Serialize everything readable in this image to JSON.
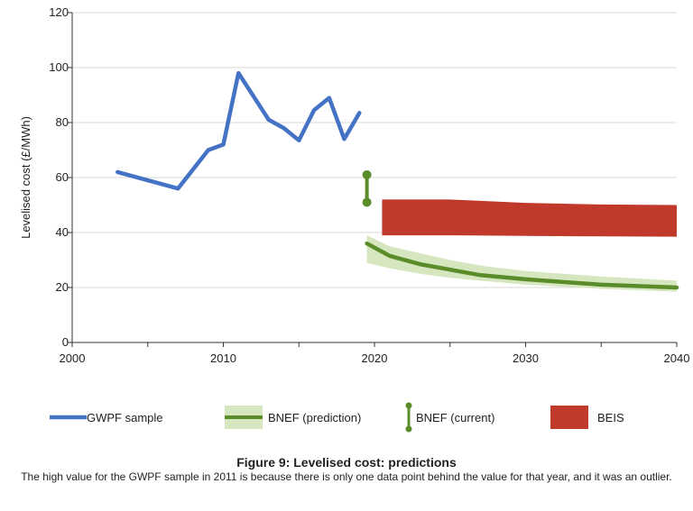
{
  "chart_data": {
    "type": "line",
    "xlim": [
      2000,
      2040
    ],
    "ylim": [
      0,
      120
    ],
    "ylabel": "Levelised cost (£/MWh)",
    "xlabel": "",
    "x_ticks": [
      2000,
      2010,
      2020,
      2030,
      2040
    ],
    "y_ticks": [
      0,
      20,
      40,
      60,
      80,
      100,
      120
    ],
    "grid": "horizontal",
    "legend_position": "bottom",
    "series": [
      {
        "name": "GWPF sample",
        "kind": "line",
        "color": "#4472c4",
        "points": [
          [
            2003,
            62
          ],
          [
            2007,
            56
          ],
          [
            2009,
            70
          ],
          [
            2010,
            72
          ],
          [
            2011,
            98
          ],
          [
            2013,
            81
          ],
          [
            2014,
            78
          ],
          [
            2015,
            73.5
          ],
          [
            2016,
            84.5
          ],
          [
            2017,
            89
          ],
          [
            2018,
            74
          ],
          [
            2019,
            83.5
          ]
        ]
      },
      {
        "name": "BNEF (prediction)",
        "kind": "line-with-band",
        "color": "#5b8c2a",
        "band_color": "#d6e7bf",
        "points": [
          [
            2019.5,
            36
          ],
          [
            2021,
            31.5
          ],
          [
            2023,
            28.5
          ],
          [
            2025,
            26.5
          ],
          [
            2027,
            24.5
          ],
          [
            2030,
            23
          ],
          [
            2035,
            21
          ],
          [
            2040,
            20
          ]
        ],
        "band_lower": [
          [
            2019.5,
            29
          ],
          [
            2021,
            27
          ],
          [
            2023,
            25
          ],
          [
            2025,
            23.5
          ],
          [
            2027,
            22.5
          ],
          [
            2030,
            21
          ],
          [
            2035,
            19.5
          ],
          [
            2040,
            18.5
          ]
        ],
        "band_upper": [
          [
            2019.5,
            39
          ],
          [
            2021,
            35
          ],
          [
            2023,
            32.5
          ],
          [
            2025,
            30
          ],
          [
            2027,
            28
          ],
          [
            2030,
            26
          ],
          [
            2035,
            24
          ],
          [
            2040,
            22.5
          ]
        ]
      },
      {
        "name": "BNEF (current)",
        "kind": "range",
        "color": "#5b8c2a",
        "x": 2019.5,
        "low": 51,
        "high": 61
      },
      {
        "name": "BEIS",
        "kind": "band",
        "color": "#c0392b",
        "lower": [
          [
            2020.5,
            39
          ],
          [
            2025,
            39
          ],
          [
            2030,
            38.8
          ],
          [
            2035,
            38.6
          ],
          [
            2040,
            38.5
          ]
        ],
        "upper": [
          [
            2020.5,
            52
          ],
          [
            2025,
            52
          ],
          [
            2030,
            50.8
          ],
          [
            2035,
            50.2
          ],
          [
            2040,
            50
          ]
        ]
      }
    ]
  },
  "caption": {
    "title": "Figure 9: Levelised cost: predictions",
    "note": "The high value for the GWPF sample in 2011 is because there is only one data point behind the value for that year, and it was an outlier."
  }
}
